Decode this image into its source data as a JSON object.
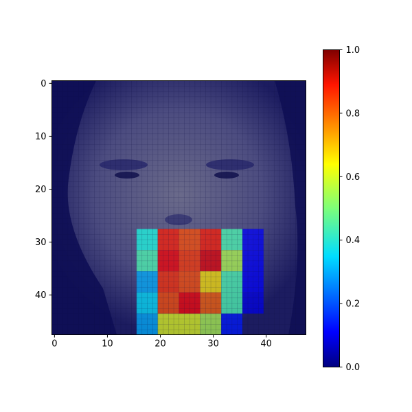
{
  "chart_data": {
    "type": "heatmap",
    "title": "",
    "xlabel": "",
    "ylabel": "",
    "xlim": [
      -0.5,
      47.5
    ],
    "ylim": [
      47.5,
      -0.5
    ],
    "x_ticks": [
      0,
      10,
      20,
      30,
      40
    ],
    "y_ticks": [
      0,
      10,
      20,
      30,
      40
    ],
    "grid": true,
    "background": "grayscale face photo (48x48 pixels) overlaid with a semi-transparent jet-colormap heatmap",
    "overlay_cell_size": 4,
    "overlay_cells": [
      {
        "row": 28,
        "col": 16,
        "value": 0.4
      },
      {
        "row": 28,
        "col": 20,
        "value": 0.85
      },
      {
        "row": 28,
        "col": 24,
        "value": 0.8
      },
      {
        "row": 28,
        "col": 28,
        "value": 0.85
      },
      {
        "row": 28,
        "col": 32,
        "value": 0.45
      },
      {
        "row": 28,
        "col": 36,
        "value": 0.12
      },
      {
        "row": 32,
        "col": 16,
        "value": 0.45
      },
      {
        "row": 32,
        "col": 20,
        "value": 0.88
      },
      {
        "row": 32,
        "col": 24,
        "value": 0.82
      },
      {
        "row": 32,
        "col": 28,
        "value": 0.9
      },
      {
        "row": 32,
        "col": 32,
        "value": 0.55
      },
      {
        "row": 32,
        "col": 36,
        "value": 0.12
      },
      {
        "row": 36,
        "col": 16,
        "value": 0.3
      },
      {
        "row": 36,
        "col": 20,
        "value": 0.83
      },
      {
        "row": 36,
        "col": 24,
        "value": 0.8
      },
      {
        "row": 36,
        "col": 28,
        "value": 0.65
      },
      {
        "row": 36,
        "col": 32,
        "value": 0.45
      },
      {
        "row": 36,
        "col": 36,
        "value": 0.12
      },
      {
        "row": 40,
        "col": 16,
        "value": 0.35
      },
      {
        "row": 40,
        "col": 20,
        "value": 0.8
      },
      {
        "row": 40,
        "col": 24,
        "value": 0.88
      },
      {
        "row": 40,
        "col": 28,
        "value": 0.78
      },
      {
        "row": 40,
        "col": 32,
        "value": 0.45
      },
      {
        "row": 40,
        "col": 36,
        "value": 0.1
      },
      {
        "row": 44,
        "col": 16,
        "value": 0.3
      },
      {
        "row": 44,
        "col": 20,
        "value": 0.6
      },
      {
        "row": 44,
        "col": 24,
        "value": 0.6
      },
      {
        "row": 44,
        "col": 28,
        "value": 0.55
      },
      {
        "row": 44,
        "col": 32,
        "value": 0.15
      }
    ],
    "colorbar": {
      "colormap": "jet",
      "range": [
        0.0,
        1.0
      ],
      "ticks": [
        "0.0",
        "0.2",
        "0.4",
        "0.6",
        "0.8",
        "1.0"
      ]
    }
  }
}
